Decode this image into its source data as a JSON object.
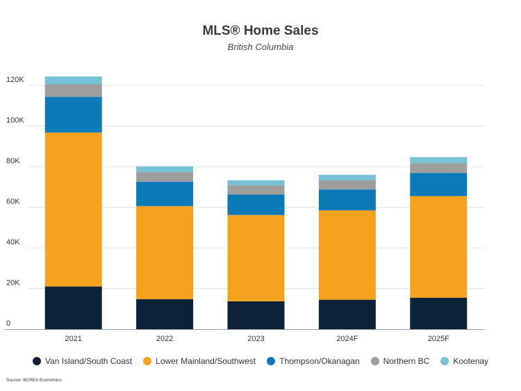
{
  "chart_data": {
    "type": "bar",
    "stacked": true,
    "title": "MLS® Home Sales",
    "subtitle": "British Columbia",
    "categories": [
      "2021",
      "2022",
      "2023",
      "2024F",
      "2025F"
    ],
    "series": [
      {
        "name": "Van Island/South Coast",
        "color": "#0b2239",
        "values": [
          21000,
          14800,
          13700,
          14500,
          15500
        ]
      },
      {
        "name": "Lower Mainland/Southwest",
        "color": "#f5a31f",
        "values": [
          75800,
          45800,
          42500,
          44000,
          50000
        ]
      },
      {
        "name": "Thompson/Okanagan",
        "color": "#0d7ab8",
        "values": [
          17600,
          12000,
          10100,
          10300,
          11400
        ]
      },
      {
        "name": "Northern BC",
        "color": "#9e9e9e",
        "values": [
          6100,
          4700,
          4500,
          4500,
          4800
        ]
      },
      {
        "name": "Kootenay",
        "color": "#78c0d3",
        "values": [
          3900,
          2900,
          2500,
          2700,
          3000
        ]
      }
    ],
    "ylim": [
      0,
      125000
    ],
    "yticks": [
      {
        "value": 0,
        "label": "0"
      },
      {
        "value": 20000,
        "label": "20K"
      },
      {
        "value": 40000,
        "label": "40K"
      },
      {
        "value": 60000,
        "label": "60K"
      },
      {
        "value": 80000,
        "label": "80K"
      },
      {
        "value": 100000,
        "label": "100K"
      },
      {
        "value": 120000,
        "label": "120K"
      }
    ],
    "grid": true,
    "legend_position": "bottom"
  },
  "source": "Source: BCREA Economics"
}
